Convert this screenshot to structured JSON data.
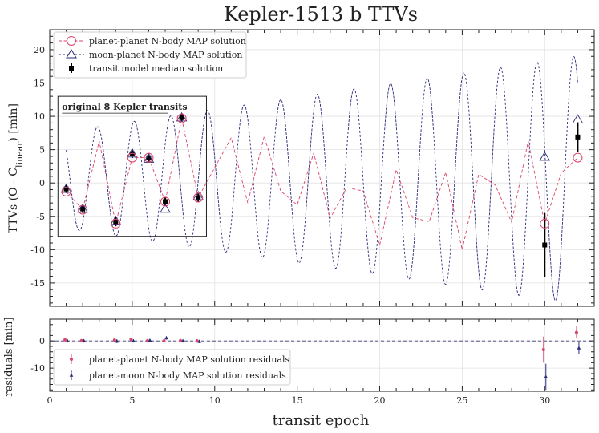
{
  "chart_data": [
    {
      "type": "line",
      "title": "Kepler-1513 b TTVs",
      "ylabel_main": "TTVs (O - C",
      "ylabel_sub": "linear",
      "ylabel_tail": ") [min]",
      "xlim": [
        0,
        33
      ],
      "ylim": [
        -18.5,
        23
      ],
      "xticks": [
        0,
        5,
        10,
        15,
        20,
        25,
        30
      ],
      "yticks": [
        -15,
        -10,
        -5,
        0,
        5,
        10,
        15,
        20
      ],
      "grid": true,
      "legend": "top-left",
      "inset_label": "original 8 Kepler transits",
      "inset_box": {
        "x": [
          0.5,
          9.5
        ],
        "y": [
          -8,
          13
        ]
      },
      "colors": {
        "planet": "#d9466a",
        "moon": "#2a2a7a",
        "transit": "#000000"
      },
      "series": [
        {
          "name": "planet-planet N-body MAP solution",
          "x": [
            1,
            2,
            3,
            4,
            5,
            6,
            7,
            8,
            9,
            10,
            11,
            12,
            13,
            14,
            15,
            16,
            17,
            18,
            19,
            20,
            21,
            22,
            23,
            24,
            25,
            26,
            27,
            28,
            29,
            30,
            31,
            32
          ],
          "y": [
            -1.3,
            -4.0,
            6.3,
            -6.1,
            3.8,
            3.8,
            -2.8,
            9.7,
            -2.2,
            2.3,
            6.8,
            -3.0,
            7.0,
            -1.2,
            -3.3,
            4.5,
            -5.3,
            -0.7,
            -1.2,
            -9.3,
            2.0,
            -5.2,
            -5.8,
            1.6,
            -10.0,
            1.3,
            -0.3,
            -5.9,
            6.3,
            -6.1,
            1.5,
            3.8
          ],
          "markers_at": [
            1,
            2,
            4,
            5,
            6,
            7,
            8,
            9,
            30,
            32
          ]
        },
        {
          "name": "moon-planet N-body MAP solution",
          "period": 2.22,
          "phase_epoch": 2.9,
          "base": 0.45,
          "amp_start": 7.3,
          "amp_slope": 0.365,
          "x_range": [
            1,
            32
          ],
          "markers": {
            "x": [
              1,
              2,
              4,
              5,
              6,
              7,
              8,
              9,
              30,
              32
            ],
            "y": [
              -0.9,
              -3.9,
              -5.7,
              4.4,
              3.6,
              -3.9,
              9.8,
              -2.0,
              3.9,
              9.5
            ]
          }
        },
        {
          "name": "transit model median solution",
          "x": [
            1,
            2,
            4,
            5,
            6,
            7,
            8,
            9,
            30,
            32
          ],
          "y": [
            -0.9,
            -3.9,
            -5.8,
            4.4,
            3.8,
            -2.8,
            9.8,
            -2.2,
            -9.3,
            6.9
          ],
          "yerr": [
            0.6,
            0.6,
            0.7,
            0.6,
            0.6,
            0.6,
            0.6,
            0.6,
            4.8,
            2.2
          ]
        }
      ]
    },
    {
      "type": "scatter",
      "xlabel": "transit epoch",
      "ylabel": "residuals [min]",
      "xlim": [
        0,
        33
      ],
      "ylim": [
        -18.5,
        8
      ],
      "xticks": [
        0,
        5,
        10,
        15,
        20,
        25,
        30
      ],
      "yticks": [
        -10,
        0
      ],
      "grid": true,
      "legend": "bottom-left",
      "series": [
        {
          "name": "planet-planet N-body MAP solution residuals",
          "x": [
            1,
            2,
            4,
            5,
            6,
            7,
            8,
            9,
            30,
            32
          ],
          "y": [
            0.4,
            0.1,
            0.3,
            0.6,
            0.1,
            0.0,
            0.1,
            0.0,
            -3.2,
            3.1
          ],
          "yerr": [
            0.6,
            0.6,
            0.7,
            0.6,
            0.6,
            0.6,
            0.6,
            0.6,
            4.8,
            2.2
          ]
        },
        {
          "name": "planet-moon N-body MAP solution residuals",
          "x": [
            1,
            2,
            4,
            5,
            6,
            7,
            8,
            9,
            30,
            32
          ],
          "y": [
            0.0,
            0.0,
            -0.1,
            0.0,
            0.2,
            1.1,
            0.0,
            -0.2,
            -13.2,
            -2.6
          ],
          "yerr": [
            0.6,
            0.6,
            0.7,
            0.6,
            0.6,
            0.6,
            0.6,
            0.6,
            4.8,
            2.2
          ]
        }
      ]
    }
  ]
}
